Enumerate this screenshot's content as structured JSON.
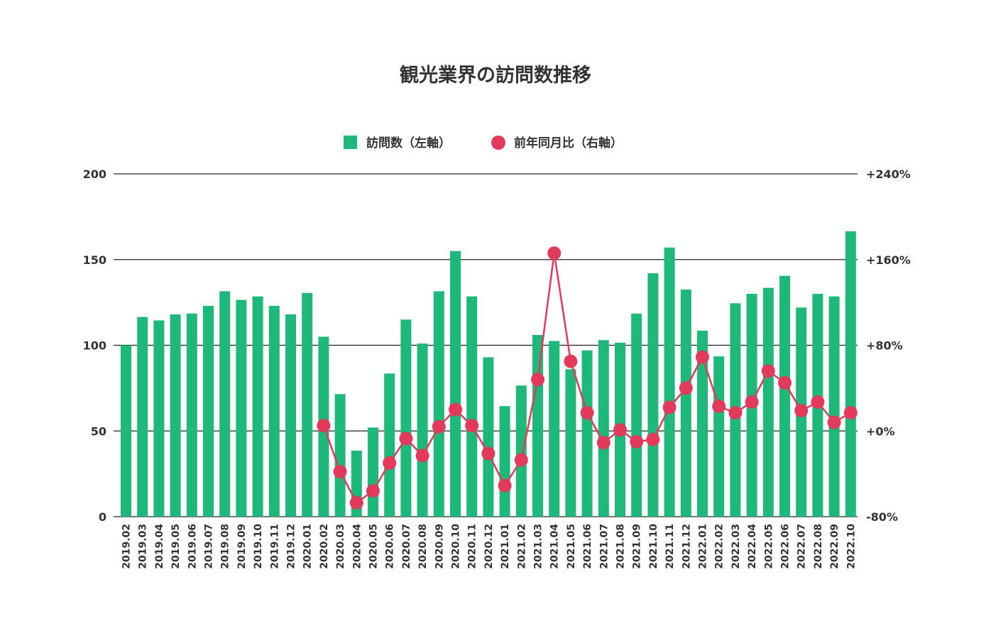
{
  "chart_data": {
    "type": "bar",
    "title": "観光業界の訪問数推移",
    "categories": [
      "2019.02",
      "2019.03",
      "2019.04",
      "2019.05",
      "2019.06",
      "2019.07",
      "2019.08",
      "2019.09",
      "2019.10",
      "2019.11",
      "2019.12",
      "2020.01",
      "2020.02",
      "2020.03",
      "2020.04",
      "2020.05",
      "2020.06",
      "2020.07",
      "2020.08",
      "2020.09",
      "2020.10",
      "2020.11",
      "2020.12",
      "2021.01",
      "2021.02",
      "2021.03",
      "2021.04",
      "2021.05",
      "2021.06",
      "2021.07",
      "2021.08",
      "2021.09",
      "2021.10",
      "2021.11",
      "2021.12",
      "2022.01",
      "2022.02",
      "2022.03",
      "2022.04",
      "2022.05",
      "2022.06",
      "2022.07",
      "2022.08",
      "2022.09",
      "2022.10"
    ],
    "series": [
      {
        "name": "訪問数（左軸）",
        "type": "bar",
        "axis": "left",
        "color": "#1db87a",
        "values": [
          100,
          116.5,
          114.5,
          118,
          118.5,
          123,
          131.5,
          126.5,
          128.5,
          123,
          118,
          130.5,
          105,
          71.5,
          38.5,
          52,
          83.5,
          115,
          101,
          131.5,
          155,
          128.5,
          93,
          64.5,
          76.5,
          106,
          102.5,
          86,
          97,
          103,
          101.5,
          118.5,
          142,
          157,
          132.5,
          108.5,
          93.5,
          124.5,
          130,
          133.5,
          140.5,
          122,
          130,
          128.5,
          166.5
        ]
      },
      {
        "name": "前年同月比（右軸）",
        "type": "line",
        "axis": "right",
        "color": "#e23a5a",
        "values": [
          null,
          null,
          null,
          null,
          null,
          null,
          null,
          null,
          null,
          null,
          null,
          null,
          5,
          -38,
          -67,
          -56,
          -30,
          -7,
          -23,
          4,
          20,
          5,
          -21,
          -51,
          -27,
          48,
          166,
          65,
          17,
          -11,
          1,
          -10,
          -8,
          22,
          40,
          69,
          23,
          17,
          27,
          56,
          45,
          19,
          27,
          8,
          17
        ]
      }
    ],
    "y_left": {
      "min": 0,
      "max": 200,
      "ticks": [
        0,
        50,
        100,
        150,
        200
      ],
      "tick_labels": [
        "0",
        "50",
        "100",
        "150",
        "200"
      ]
    },
    "y_right": {
      "min": -80,
      "max": 240,
      "ticks": [
        -80,
        0,
        80,
        160,
        240
      ],
      "tick_labels": [
        "-80%",
        "+0%",
        "+80%",
        "+160%",
        "+240%"
      ]
    },
    "grid": true,
    "legend": "top-center"
  }
}
